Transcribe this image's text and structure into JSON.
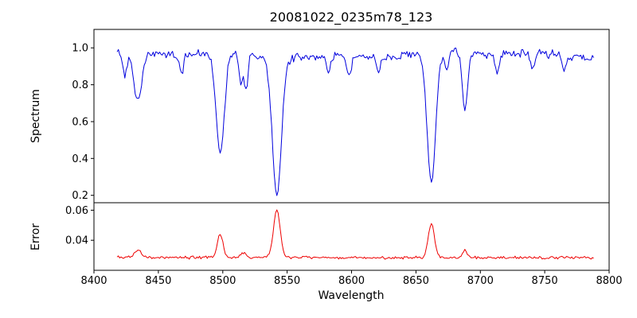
{
  "chart_data": {
    "type": "line",
    "title": "20081022_0235m78_123",
    "xlabel": "Wavelength",
    "x_range": [
      8400,
      8800
    ],
    "x_ticks": [
      "8400",
      "8450",
      "8500",
      "8550",
      "8600",
      "8650",
      "8700",
      "8750",
      "8800"
    ],
    "x_start": 8418,
    "x_end": 8788,
    "x_step": 1,
    "noise_seed": 20081022,
    "grid": false,
    "legend": "none",
    "panels": [
      {
        "name": "spectrum",
        "ylabel": "Spectrum",
        "color": "#0000dd",
        "y_range": [
          0.16,
          1.1
        ],
        "y_ticks": [
          "0.2",
          "0.4",
          "0.6",
          "0.8",
          "1.0"
        ],
        "continuum": 0.96,
        "noise_sigma": 0.022,
        "absorption_lines": [
          {
            "center": 8424,
            "depth": 0.13,
            "width": 1.8
          },
          {
            "center": 8434,
            "depth": 0.26,
            "width": 3.0
          },
          {
            "center": 8468,
            "depth": 0.11,
            "width": 1.6
          },
          {
            "center": 8498,
            "depth": 0.55,
            "width": 3.2
          },
          {
            "center": 8514,
            "depth": 0.17,
            "width": 1.4
          },
          {
            "center": 8518,
            "depth": 0.19,
            "width": 1.4
          },
          {
            "center": 8542,
            "depth": 0.74,
            "width": 3.5
          },
          {
            "center": 8582,
            "depth": 0.09,
            "width": 1.6
          },
          {
            "center": 8598,
            "depth": 0.11,
            "width": 1.8
          },
          {
            "center": 8621,
            "depth": 0.08,
            "width": 1.5
          },
          {
            "center": 8662,
            "depth": 0.71,
            "width": 3.3
          },
          {
            "center": 8674,
            "depth": 0.1,
            "width": 1.5
          },
          {
            "center": 8688,
            "depth": 0.32,
            "width": 2.0
          },
          {
            "center": 8713,
            "depth": 0.09,
            "width": 1.6
          },
          {
            "center": 8741,
            "depth": 0.09,
            "width": 1.6
          },
          {
            "center": 8765,
            "depth": 0.08,
            "width": 1.5
          }
        ]
      },
      {
        "name": "error",
        "ylabel": "Error",
        "color": "#ee0000",
        "y_range": [
          0.02,
          0.065
        ],
        "y_ticks": [
          "0.04",
          "0.06"
        ],
        "baseline": 0.0285,
        "noise_sigma": 0.0009,
        "peaks": [
          {
            "center": 8434,
            "height": 0.005,
            "width": 2.5
          },
          {
            "center": 8498,
            "height": 0.0155,
            "width": 2.2
          },
          {
            "center": 8516,
            "height": 0.003,
            "width": 2.0
          },
          {
            "center": 8542,
            "height": 0.032,
            "width": 2.6
          },
          {
            "center": 8662,
            "height": 0.0225,
            "width": 2.4
          },
          {
            "center": 8688,
            "height": 0.005,
            "width": 1.8
          }
        ]
      }
    ]
  }
}
